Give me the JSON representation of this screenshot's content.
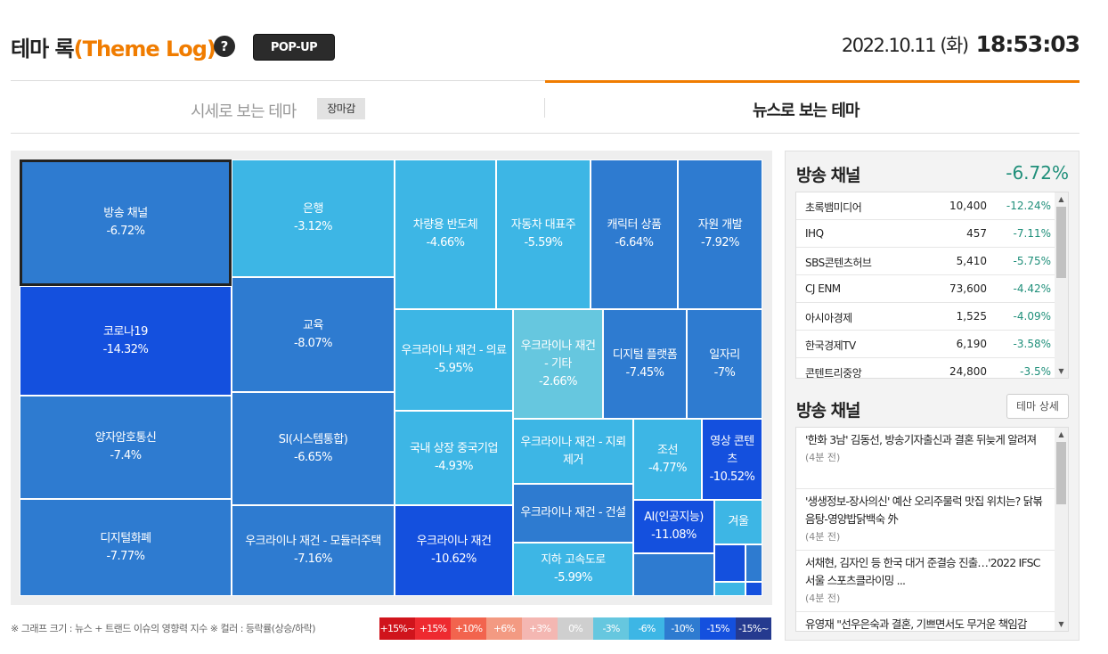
{
  "header": {
    "title_main": "테마 록",
    "title_accent": "(Theme Log)",
    "help": "?",
    "popup_label": "POP-UP",
    "date": "2022.10.11 (화)",
    "time": "18:53:03"
  },
  "tabs": {
    "left": {
      "label": "시세로 보는 테마",
      "badge": "장마감"
    },
    "right": {
      "label": "뉴스로 보는 테마"
    }
  },
  "treemap": {
    "tiles": [
      {
        "name": "방송 채널",
        "change": "-6.72%",
        "color": "#2e7bd0",
        "selected": true
      },
      {
        "name": "코로나19",
        "change": "-14.32%",
        "color": "#1450de"
      },
      {
        "name": "양자암호통신",
        "change": "-7.4%",
        "color": "#2e7bd0"
      },
      {
        "name": "디지털화폐",
        "change": "-7.77%",
        "color": "#2e7bd0"
      },
      {
        "name": "은행",
        "change": "-3.12%",
        "color": "#3db6e5"
      },
      {
        "name": "교육",
        "change": "-8.07%",
        "color": "#2e7bd0"
      },
      {
        "name": "SI(시스템통합)",
        "change": "-6.65%",
        "color": "#2e7bd0"
      },
      {
        "name": "우크라이나 재건 - 모듈러주택",
        "change": "-7.16%",
        "color": "#2e7bd0"
      },
      {
        "name": "차량용 반도체",
        "change": "-4.66%",
        "color": "#3db6e5"
      },
      {
        "name": "자동차 대표주",
        "change": "-5.59%",
        "color": "#3db6e5"
      },
      {
        "name": "캐릭터 상품",
        "change": "-6.64%",
        "color": "#2e7bd0"
      },
      {
        "name": "자원 개발",
        "change": "-7.92%",
        "color": "#2e7bd0"
      },
      {
        "name": "우크라이나 재건 - 의료",
        "change": "-5.95%",
        "color": "#3db6e5"
      },
      {
        "name": "우크라이나 재건 - 기타",
        "change": "-2.66%",
        "color": "#66c7df"
      },
      {
        "name": "디지털 플랫폼",
        "change": "-7.45%",
        "color": "#2e7bd0"
      },
      {
        "name": "일자리",
        "change": "-7%",
        "color": "#2e7bd0"
      },
      {
        "name": "국내 상장 중국기업",
        "change": "-4.93%",
        "color": "#3db6e5"
      },
      {
        "name": "우크라이나 재건",
        "change": "-10.62%",
        "color": "#1450de"
      },
      {
        "name": "우크라이나 재건 - 지뢰제거",
        "change": "",
        "color": "#3db6e5"
      },
      {
        "name": "우크라이나 재건 - 건설",
        "change": "",
        "color": "#2e7bd0"
      },
      {
        "name": "지하 고속도로",
        "change": "-5.99%",
        "color": "#3db6e5"
      },
      {
        "name": "조선",
        "change": "-4.77%",
        "color": "#3db6e5"
      },
      {
        "name": "영상 콘텐츠",
        "change": "-10.52%",
        "color": "#1450de"
      },
      {
        "name": "AI(인공지능)",
        "change": "-11.08%",
        "color": "#1450de"
      },
      {
        "name": "겨울",
        "change": "",
        "color": "#3db6e5"
      },
      {
        "name": "",
        "change": "",
        "color": "#2e7bd0"
      },
      {
        "name": "",
        "change": "",
        "color": "#1450de"
      },
      {
        "name": "",
        "change": "",
        "color": "#2e7bd0"
      },
      {
        "name": "",
        "change": "",
        "color": "#3db6e5"
      },
      {
        "name": "",
        "change": "",
        "color": "#1450de"
      }
    ]
  },
  "legend": {
    "note": "※ 그래프 크기 : 뉴스 + 트랜드 이슈의 영향력 지수 ※ 컬러 : 등락률(상승/하락)",
    "items": [
      {
        "label": "+15%~",
        "color": "#d0141c"
      },
      {
        "label": "+15%",
        "color": "#ee2a30"
      },
      {
        "label": "+10%",
        "color": "#f2644e"
      },
      {
        "label": "+6%",
        "color": "#f39a82"
      },
      {
        "label": "+3%",
        "color": "#f4b7b2"
      },
      {
        "label": "0%",
        "color": "#cfcfcf"
      },
      {
        "label": "-3%",
        "color": "#66c7df"
      },
      {
        "label": "-6%",
        "color": "#3db6e5"
      },
      {
        "label": "-10%",
        "color": "#2e7bd0"
      },
      {
        "label": "-15%",
        "color": "#1450de"
      },
      {
        "label": "-15%~",
        "color": "#253a8f"
      }
    ]
  },
  "panel": {
    "title": "방송 채널",
    "change": "-6.72%",
    "stocks": [
      {
        "name": "초록뱀미디어",
        "price": "10,400",
        "change": "-12.24%"
      },
      {
        "name": "IHQ",
        "price": "457",
        "change": "-7.11%"
      },
      {
        "name": "SBS콘텐츠허브",
        "price": "5,410",
        "change": "-5.75%"
      },
      {
        "name": "CJ ENM",
        "price": "73,600",
        "change": "-4.42%"
      },
      {
        "name": "아시아경제",
        "price": "1,525",
        "change": "-4.09%"
      },
      {
        "name": "한국경제TV",
        "price": "6,190",
        "change": "-3.58%"
      },
      {
        "name": "콘텐트리중앙",
        "price": "24,800",
        "change": "-3.5%"
      }
    ],
    "news_title": "방송 채널",
    "detail_label": "테마 상세",
    "news": [
      {
        "headline": "'한화 3남' 김동선, 방송기자출신과 결혼 뒤늦게 알려져",
        "time": "(4분 전)"
      },
      {
        "headline": "'생생정보-장사의신' 예산 오리주물럭 맛집 위치는? 닭볶음탕-영양밥닭백숙 外",
        "time": "(4분 전)"
      },
      {
        "headline": "서채현, 김자인 등 한국 대거 준결승 진출…'2022 IFSC 서울 스포츠클라이밍 ...",
        "time": "(4분 전)"
      },
      {
        "headline": "유영재 \"선우은숙과 결혼, 기쁘면서도 무거운 책임감",
        "time": ""
      }
    ]
  }
}
